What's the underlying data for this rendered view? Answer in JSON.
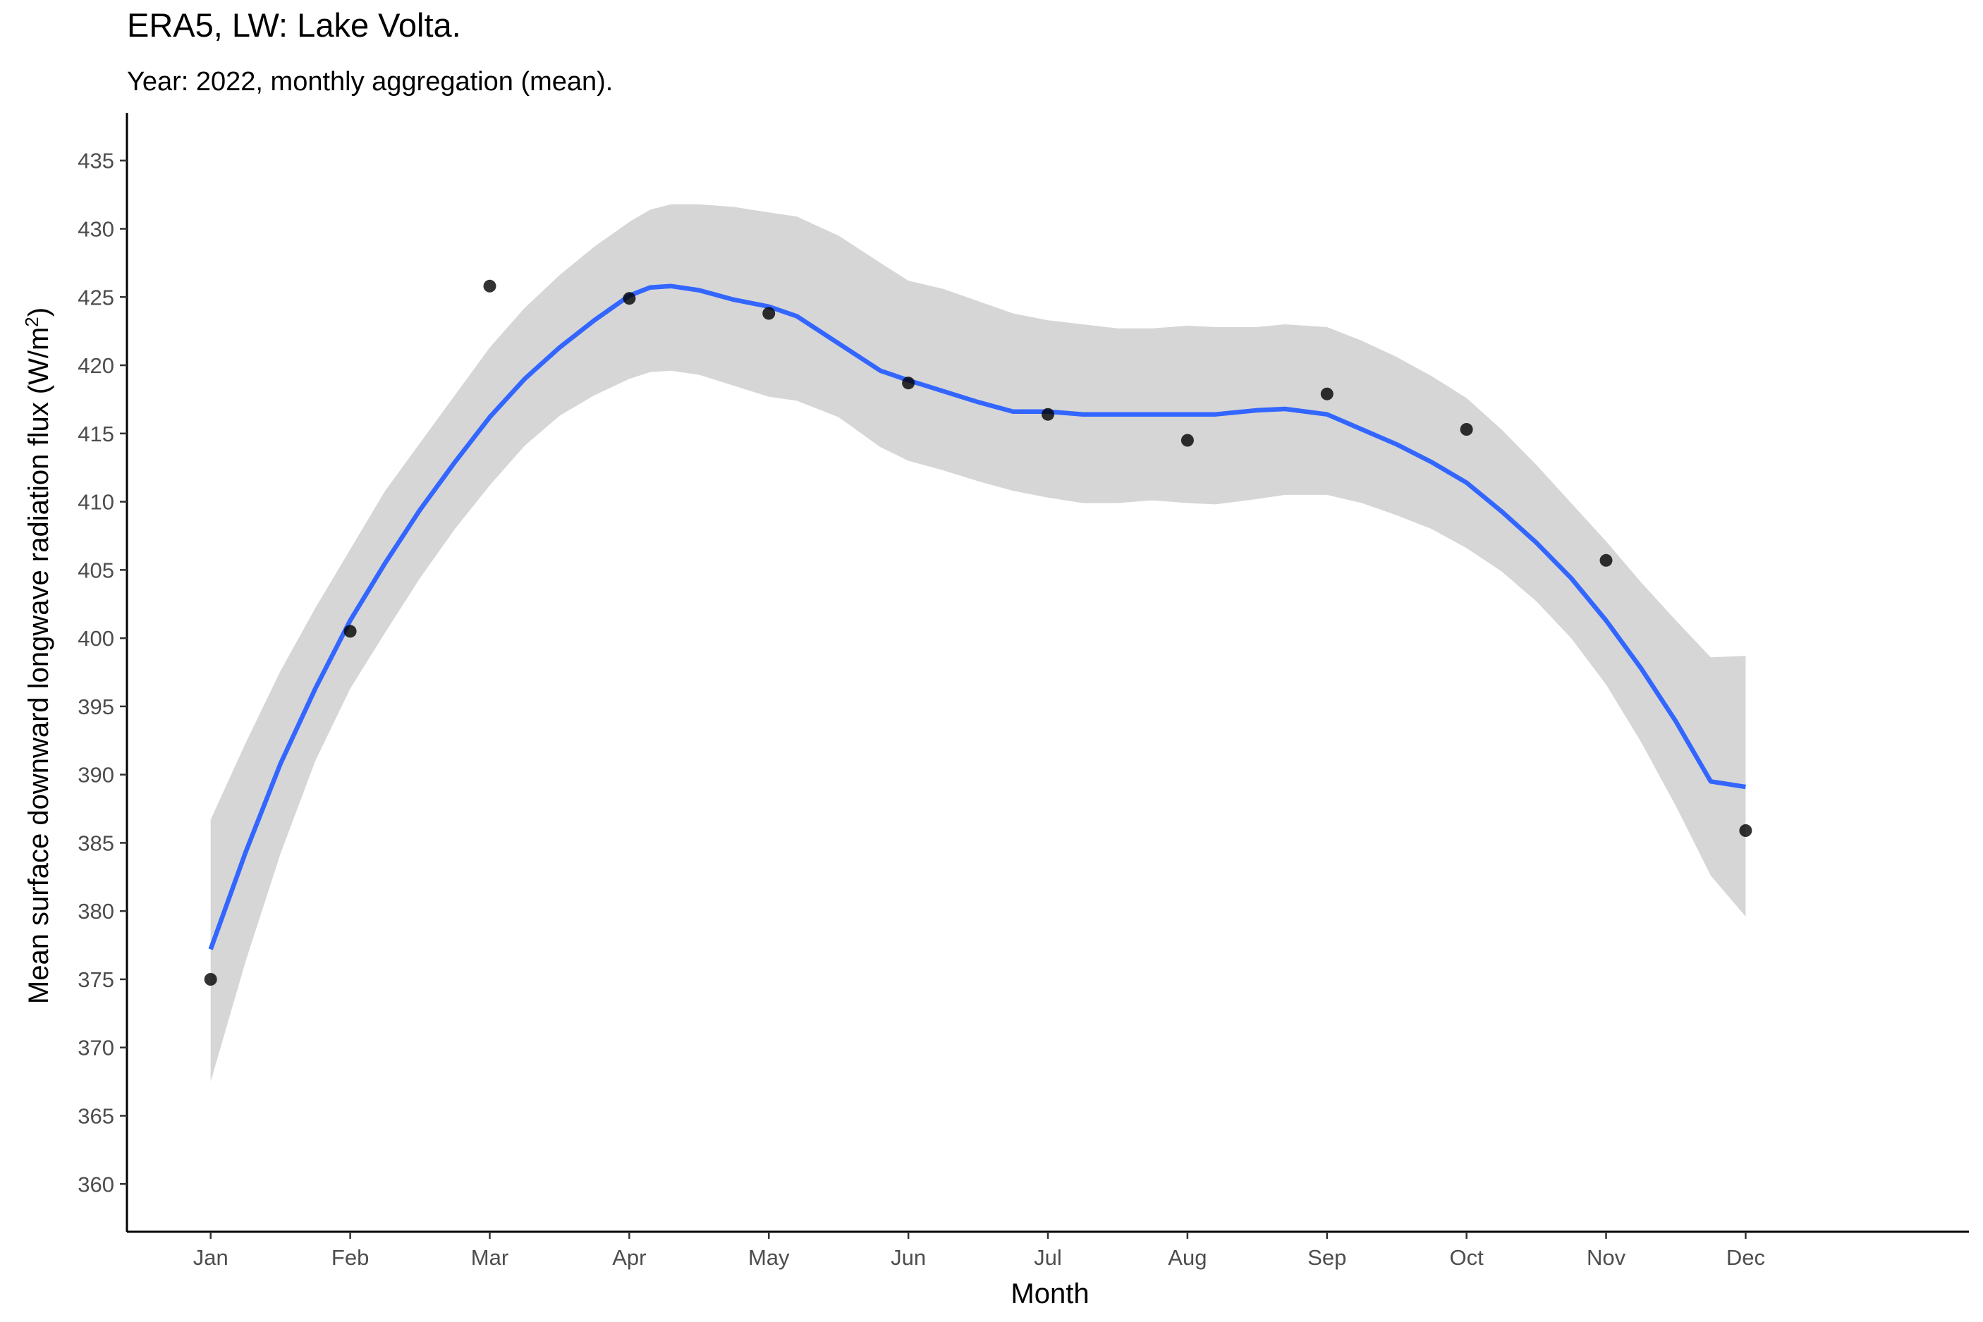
{
  "chart_data": {
    "type": "scatter",
    "title": "ERA5, LW: Lake Volta.",
    "subtitle": "Year: 2022, monthly aggregation (mean).",
    "xlabel": "Month",
    "ylabel": "Mean surface downward longwave radiation flux (W/m",
    "ylabel_sup": "2",
    "ylabel_close": ")",
    "categories": [
      "Jan",
      "Feb",
      "Mar",
      "Apr",
      "May",
      "Jun",
      "Jul",
      "Aug",
      "Sep",
      "Oct",
      "Nov",
      "Dec"
    ],
    "ylim": [
      356.5,
      438.5
    ],
    "yticks": [
      360,
      365,
      370,
      375,
      380,
      385,
      390,
      395,
      400,
      405,
      410,
      415,
      420,
      425,
      430,
      435
    ],
    "grid": false,
    "points": [
      375.0,
      400.5,
      425.8,
      424.9,
      423.8,
      418.7,
      416.4,
      414.5,
      417.9,
      415.3,
      405.7,
      385.9
    ],
    "smooth": {
      "x": [
        1.0,
        1.25,
        1.5,
        1.75,
        2.0,
        2.25,
        2.5,
        2.75,
        3.0,
        3.25,
        3.5,
        3.75,
        4.0,
        4.15,
        4.3,
        4.5,
        4.75,
        5.0,
        5.2,
        5.5,
        5.8,
        6.0,
        6.25,
        6.5,
        6.75,
        7.0,
        7.25,
        7.5,
        7.75,
        8.0,
        8.2,
        8.5,
        8.7,
        9.0,
        9.25,
        9.5,
        9.75,
        10.0,
        10.25,
        10.5,
        10.75,
        11.0,
        11.25,
        11.5,
        11.75,
        12.0
      ],
      "fit": [
        377.2,
        384.3,
        390.8,
        396.3,
        401.3,
        405.5,
        409.4,
        412.9,
        416.2,
        419.0,
        421.3,
        423.3,
        425.1,
        425.7,
        425.8,
        425.5,
        424.8,
        424.3,
        423.6,
        421.6,
        419.6,
        418.9,
        418.1,
        417.3,
        416.6,
        416.6,
        416.4,
        416.4,
        416.4,
        416.4,
        416.4,
        416.7,
        416.8,
        416.4,
        415.3,
        414.2,
        412.9,
        411.4,
        409.3,
        407.0,
        404.4,
        401.3,
        397.8,
        393.9,
        389.5,
        389.1
      ],
      "lower": [
        367.5,
        376.3,
        384.2,
        391.0,
        396.3,
        400.4,
        404.4,
        408.0,
        411.2,
        414.1,
        416.3,
        417.8,
        419.0,
        419.5,
        419.6,
        419.3,
        418.5,
        417.7,
        417.4,
        416.2,
        414.0,
        413.0,
        412.3,
        411.5,
        410.8,
        410.3,
        409.9,
        409.9,
        410.1,
        409.9,
        409.8,
        410.2,
        410.5,
        410.5,
        409.9,
        409.0,
        408.0,
        406.6,
        404.9,
        402.7,
        400.0,
        396.6,
        392.4,
        387.7,
        382.6,
        379.6
      ],
      "upper": [
        386.7,
        392.3,
        397.6,
        402.2,
        406.5,
        410.8,
        414.3,
        417.8,
        421.3,
        424.2,
        426.6,
        428.7,
        430.5,
        431.4,
        431.8,
        431.8,
        431.6,
        431.2,
        430.9,
        429.5,
        427.5,
        426.2,
        425.6,
        424.7,
        423.8,
        423.3,
        423.0,
        422.7,
        422.7,
        422.9,
        422.8,
        422.8,
        423.0,
        422.8,
        421.8,
        420.6,
        419.2,
        417.6,
        415.3,
        412.7,
        409.9,
        407.1,
        404.1,
        401.3,
        398.6,
        398.7
      ]
    },
    "colors": {
      "line": "#3366ff",
      "ribbon": "#d6d6d6",
      "point": "#000000",
      "axis": "#000000",
      "tick_label": "#4d4d4d"
    }
  }
}
